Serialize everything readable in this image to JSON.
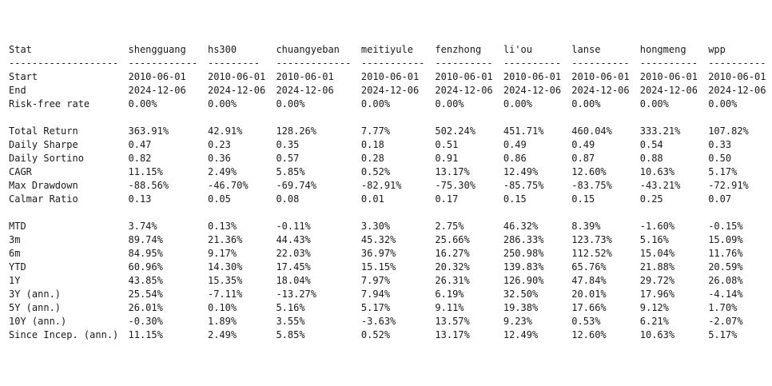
{
  "header": [
    "Stat",
    "shengguang",
    "hs300",
    "chuangyeban",
    "meitiyule",
    "fenzhong",
    "li'ou",
    "lanse",
    "hongmeng",
    "wpp"
  ],
  "separators": [
    "-------------------",
    "------------",
    "---------",
    "-------------",
    "-----------",
    "----------",
    "----------",
    "----------",
    "----------",
    "----------"
  ],
  "groups": [
    [
      [
        "Start",
        "2010-06-01",
        "2010-06-01",
        "2010-06-01",
        "2010-06-01",
        "2010-06-01",
        "2010-06-01",
        "2010-06-01",
        "2010-06-01",
        "2010-06-01"
      ],
      [
        "End",
        "2024-12-06",
        "2024-12-06",
        "2024-12-06",
        "2024-12-06",
        "2024-12-06",
        "2024-12-06",
        "2024-12-06",
        "2024-12-06",
        "2024-12-06"
      ],
      [
        "Risk-free rate",
        "0.00%",
        "0.00%",
        "0.00%",
        "0.00%",
        "0.00%",
        "0.00%",
        "0.00%",
        "0.00%",
        "0.00%"
      ]
    ],
    [
      [
        "Total Return",
        "363.91%",
        "42.91%",
        "128.26%",
        "7.77%",
        "502.24%",
        "451.71%",
        "460.04%",
        "333.21%",
        "107.82%"
      ],
      [
        "Daily Sharpe",
        "0.47",
        "0.23",
        "0.35",
        "0.18",
        "0.51",
        "0.49",
        "0.49",
        "0.54",
        "0.33"
      ],
      [
        "Daily Sortino",
        "0.82",
        "0.36",
        "0.57",
        "0.28",
        "0.91",
        "0.86",
        "0.87",
        "0.88",
        "0.50"
      ],
      [
        "CAGR",
        "11.15%",
        "2.49%",
        "5.85%",
        "0.52%",
        "13.17%",
        "12.49%",
        "12.60%",
        "10.63%",
        "5.17%"
      ],
      [
        "Max Drawdown",
        "-88.56%",
        "-46.70%",
        "-69.74%",
        "-82.91%",
        "-75.30%",
        "-85.75%",
        "-83.75%",
        "-43.21%",
        "-72.91%"
      ],
      [
        "Calmar Ratio",
        "0.13",
        "0.05",
        "0.08",
        "0.01",
        "0.17",
        "0.15",
        "0.15",
        "0.25",
        "0.07"
      ]
    ],
    [
      [
        "MTD",
        "3.74%",
        "0.13%",
        "-0.11%",
        "3.30%",
        "2.75%",
        "46.32%",
        "8.39%",
        "-1.60%",
        "-0.15%"
      ],
      [
        "3m",
        "89.74%",
        "21.36%",
        "44.43%",
        "45.32%",
        "25.66%",
        "286.33%",
        "123.73%",
        "5.16%",
        "15.09%"
      ],
      [
        "6m",
        "84.95%",
        "9.17%",
        "22.03%",
        "36.97%",
        "16.27%",
        "250.98%",
        "112.52%",
        "15.04%",
        "11.76%"
      ],
      [
        "YTD",
        "60.96%",
        "14.30%",
        "17.45%",
        "15.15%",
        "20.32%",
        "139.83%",
        "65.76%",
        "21.88%",
        "20.59%"
      ],
      [
        "1Y",
        "43.85%",
        "15.35%",
        "18.04%",
        "7.97%",
        "26.31%",
        "126.90%",
        "47.84%",
        "29.72%",
        "26.08%"
      ],
      [
        "3Y (ann.)",
        "25.54%",
        "-7.11%",
        "-13.27%",
        "7.94%",
        "6.19%",
        "32.50%",
        "20.01%",
        "17.96%",
        "-4.14%"
      ],
      [
        "5Y (ann.)",
        "26.01%",
        "0.10%",
        "5.16%",
        "5.17%",
        "9.11%",
        "19.38%",
        "17.66%",
        "9.12%",
        "1.70%"
      ],
      [
        "10Y (ann.)",
        "-0.30%",
        "1.89%",
        "3.55%",
        "-3.63%",
        "13.57%",
        "9.23%",
        "0.53%",
        "6.21%",
        "-2.07%"
      ],
      [
        "Since Incep. (ann.)",
        "11.15%",
        "2.49%",
        "5.85%",
        "0.52%",
        "13.17%",
        "12.49%",
        "12.60%",
        "10.63%",
        "5.17%"
      ]
    ]
  ]
}
